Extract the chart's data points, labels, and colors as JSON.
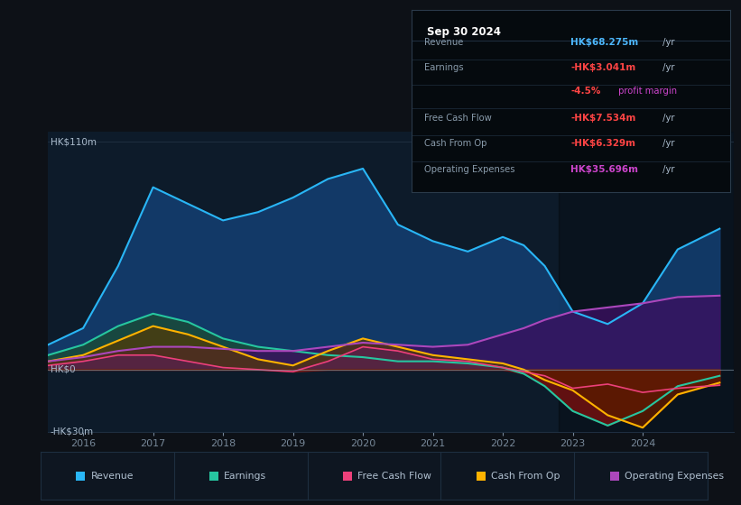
{
  "bg_color": "#0d1117",
  "plot_bg": "#0d1b2a",
  "highlight_bg": "#0a1520",
  "ylim": [
    -30,
    115
  ],
  "xlim": [
    2015.5,
    2025.3
  ],
  "y_ticks_pos": [
    110,
    0,
    -30
  ],
  "y_tick_labels": [
    "HK$110m",
    "HK$0",
    "-HK$30m"
  ],
  "x_ticks": [
    2016,
    2017,
    2018,
    2019,
    2020,
    2021,
    2022,
    2023,
    2024
  ],
  "x_tick_labels": [
    "2016",
    "2017",
    "2018",
    "2019",
    "2020",
    "2021",
    "2022",
    "2023",
    "2024"
  ],
  "highlight_x_start": 2022.8,
  "x_years": [
    2015.5,
    2016.0,
    2016.5,
    2017.0,
    2017.5,
    2018.0,
    2018.5,
    2019.0,
    2019.5,
    2020.0,
    2020.5,
    2021.0,
    2021.5,
    2022.0,
    2022.3,
    2022.6,
    2023.0,
    2023.5,
    2024.0,
    2024.5,
    2025.1
  ],
  "revenue": [
    12,
    20,
    50,
    88,
    80,
    72,
    76,
    83,
    92,
    97,
    70,
    62,
    57,
    64,
    60,
    50,
    28,
    22,
    32,
    58,
    68
  ],
  "earnings": [
    7,
    12,
    21,
    27,
    23,
    15,
    11,
    9,
    7,
    6,
    4,
    4,
    3,
    1,
    -2,
    -8,
    -20,
    -27,
    -20,
    -8,
    -3
  ],
  "free_cash_flow": [
    2,
    4,
    7,
    7,
    4,
    1,
    0,
    -1,
    4,
    11,
    9,
    5,
    4,
    1,
    -1,
    -3,
    -9,
    -7,
    -11,
    -9,
    -7.5
  ],
  "cash_from_op": [
    4,
    7,
    14,
    21,
    17,
    11,
    5,
    2,
    9,
    15,
    11,
    7,
    5,
    3,
    0,
    -5,
    -10,
    -22,
    -28,
    -12,
    -6.3
  ],
  "op_expenses": [
    4,
    6,
    9,
    11,
    11,
    10,
    9,
    9,
    11,
    13,
    12,
    11,
    12,
    17,
    20,
    24,
    28,
    30,
    32,
    35,
    35.7
  ],
  "revenue_color": "#29b6f6",
  "revenue_fill": "#133d6e",
  "earnings_color": "#26c6a0",
  "earnings_fill_pos": "#1a4a3a",
  "earnings_fill_neg": "#6b1010",
  "fcf_color": "#ec407a",
  "fcf_fill_pos": "#5a2050",
  "fcf_fill_neg": "#7a1818",
  "cashop_color": "#ffb300",
  "cashop_fill_pos": "#5a3a00",
  "cashop_fill_neg": "#5a1a00",
  "opex_color": "#ab47bc",
  "opex_fill": "#3a1060",
  "grid_line_color": "#1e2e40",
  "zero_line_color": "#8899aa",
  "info_title": "Sep 30 2024",
  "info_bg": "#050a0e",
  "info_border": "#2a3a4a",
  "info_title_color": "#ffffff",
  "info_label_color": "#889aaa",
  "info_divider": "#1e2e3e",
  "info_rows": [
    {
      "label": "Revenue",
      "value": "HK$68.275m",
      "suffix": " /yr",
      "val_color": "#4db8ff",
      "suf_color": "#aabbcc"
    },
    {
      "label": "Earnings",
      "value": "-HK$3.041m",
      "suffix": " /yr",
      "val_color": "#ff4444",
      "suf_color": "#aabbcc"
    },
    {
      "label": "",
      "value": "-4.5%",
      "suffix": " profit margin",
      "val_color": "#ff4444",
      "suf_color": "#cc44cc"
    },
    {
      "label": "Free Cash Flow",
      "value": "-HK$7.534m",
      "suffix": " /yr",
      "val_color": "#ff4444",
      "suf_color": "#aabbcc"
    },
    {
      "label": "Cash From Op",
      "value": "-HK$6.329m",
      "suffix": " /yr",
      "val_color": "#ff4444",
      "suf_color": "#aabbcc"
    },
    {
      "label": "Operating Expenses",
      "value": "HK$35.696m",
      "suffix": " /yr",
      "val_color": "#cc44cc",
      "suf_color": "#aabbcc"
    }
  ],
  "legend_items": [
    {
      "label": "Revenue",
      "color": "#29b6f6"
    },
    {
      "label": "Earnings",
      "color": "#26c6a0"
    },
    {
      "label": "Free Cash Flow",
      "color": "#ec407a"
    },
    {
      "label": "Cash From Op",
      "color": "#ffb300"
    },
    {
      "label": "Operating Expenses",
      "color": "#ab47bc"
    }
  ]
}
